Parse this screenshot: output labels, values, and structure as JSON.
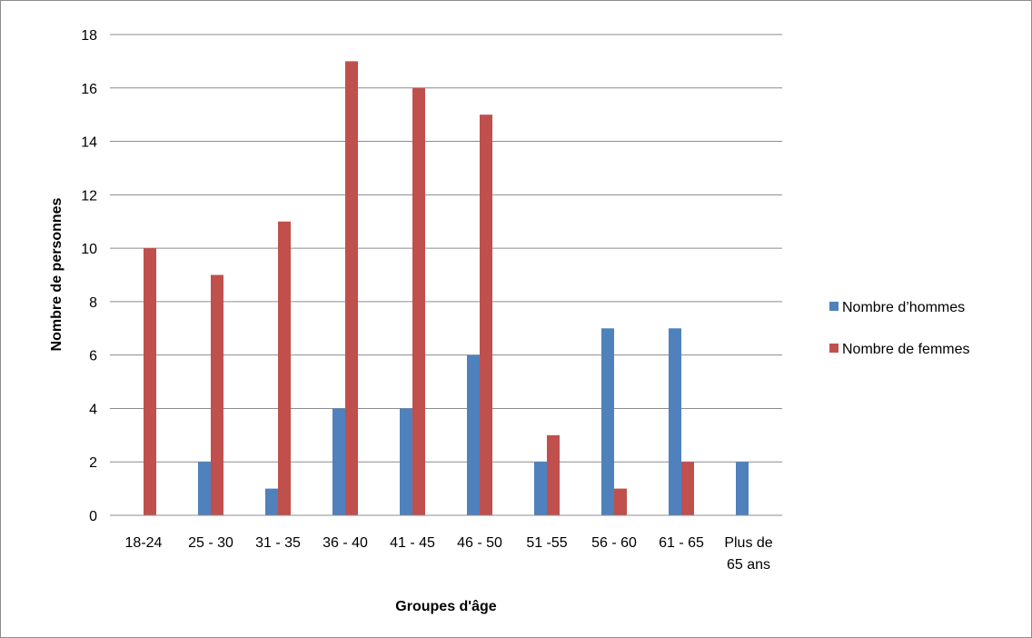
{
  "chart_data": {
    "type": "bar",
    "categories": [
      "18-24",
      "25 - 30",
      "31 - 35",
      "36 - 40",
      "41 - 45",
      "46 - 50",
      "51 -55",
      "56 - 60",
      "61 - 65",
      "Plus de 65 ans"
    ],
    "category_lines": [
      [
        "18-24"
      ],
      [
        "25 - 30"
      ],
      [
        "31 - 35"
      ],
      [
        "36 - 40"
      ],
      [
        "41 - 45"
      ],
      [
        "46 - 50"
      ],
      [
        "51 -55"
      ],
      [
        "56 - 60"
      ],
      [
        "61 - 65"
      ],
      [
        "Plus de",
        "65 ans"
      ]
    ],
    "series": [
      {
        "name": "Nombre d’hommes",
        "color": "#4f81bd",
        "values": [
          0,
          2,
          1,
          4,
          4,
          6,
          2,
          7,
          7,
          2
        ]
      },
      {
        "name": "Nombre de femmes",
        "color": "#c0504d",
        "values": [
          10,
          9,
          11,
          17,
          16,
          15,
          3,
          1,
          2,
          0
        ]
      }
    ],
    "title": "",
    "xlabel": "Groupes d'âge",
    "ylabel": "Nombre de personnes",
    "ylim": [
      0,
      18
    ],
    "yticks": [
      "0",
      "2",
      "4",
      "6",
      "8",
      "10",
      "12",
      "14",
      "16",
      "18"
    ],
    "grid": true,
    "legend": "right"
  }
}
